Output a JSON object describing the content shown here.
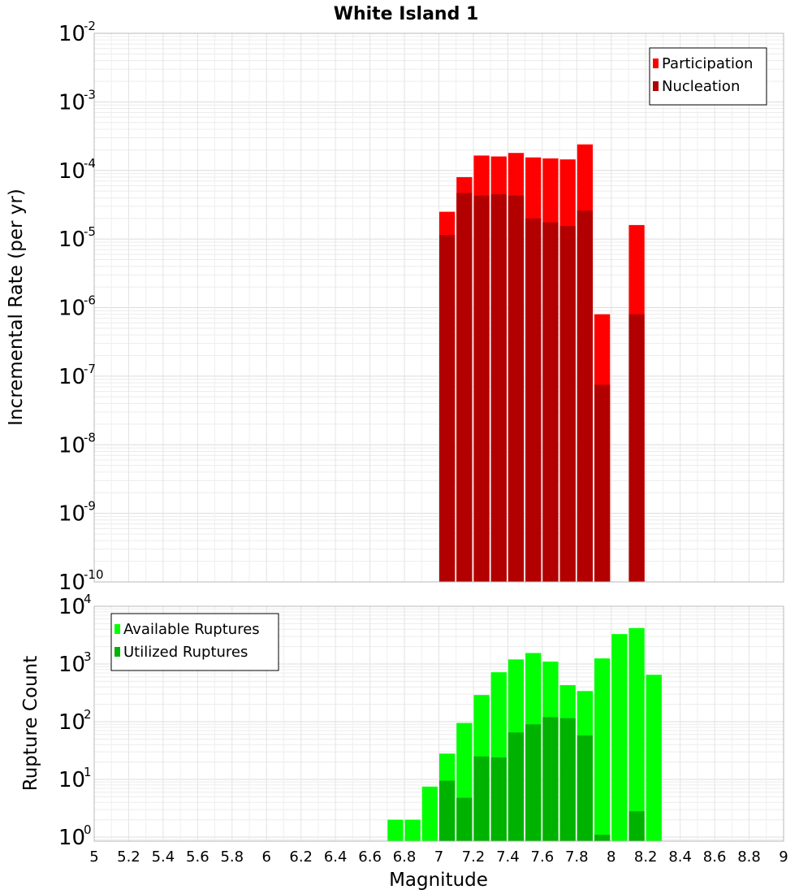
{
  "chart_data": [
    {
      "type": "bar",
      "title": "White Island 1",
      "xlabel": "",
      "ylabel": "Incremental Rate (per yr)",
      "y_scale": "log",
      "ylim": [
        1e-10,
        0.01
      ],
      "xlim": [
        5,
        9
      ],
      "bar_width": 0.1,
      "grid": true,
      "legend_position": "top-right",
      "y_ticks": [
        {
          "base": "10",
          "exp": "-10",
          "value": 1e-10
        },
        {
          "base": "10",
          "exp": "-9",
          "value": 1e-09
        },
        {
          "base": "10",
          "exp": "-8",
          "value": 1e-08
        },
        {
          "base": "10",
          "exp": "-7",
          "value": 1e-07
        },
        {
          "base": "10",
          "exp": "-6",
          "value": 1e-06
        },
        {
          "base": "10",
          "exp": "-5",
          "value": 1e-05
        },
        {
          "base": "10",
          "exp": "-4",
          "value": 0.0001
        },
        {
          "base": "10",
          "exp": "-3",
          "value": 0.001
        },
        {
          "base": "10",
          "exp": "-2",
          "value": 0.01
        }
      ],
      "series": [
        {
          "name": "Participation",
          "color": "#ff0000",
          "x": [
            7.05,
            7.15,
            7.25,
            7.35,
            7.45,
            7.55,
            7.65,
            7.75,
            7.85,
            7.95,
            8.15
          ],
          "values": [
            2.5e-05,
            8e-05,
            0.000165,
            0.00016,
            0.00018,
            0.000155,
            0.00015,
            0.000145,
            0.00024,
            8e-07,
            1.6e-05
          ]
        },
        {
          "name": "Nucleation",
          "color": "#b20000",
          "x": [
            7.05,
            7.15,
            7.25,
            7.35,
            7.45,
            7.55,
            7.65,
            7.75,
            7.85,
            7.95,
            8.15
          ],
          "values": [
            1.15e-05,
            4.7e-05,
            4.3e-05,
            4.5e-05,
            4.3e-05,
            2e-05,
            1.75e-05,
            1.55e-05,
            2.6e-05,
            7.5e-08,
            8e-07
          ]
        }
      ]
    },
    {
      "type": "bar",
      "title": "",
      "xlabel": "Magnitude",
      "ylabel": "Rupture Count",
      "y_scale": "log",
      "ylim": [
        0.85,
        10000
      ],
      "xlim": [
        5,
        9
      ],
      "bar_width": 0.1,
      "grid": true,
      "legend_position": "top-left",
      "x_ticks": [
        "5",
        "5.2",
        "5.4",
        "5.6",
        "5.8",
        "6",
        "6.2",
        "6.4",
        "6.6",
        "6.8",
        "7",
        "7.2",
        "7.4",
        "7.6",
        "7.8",
        "8",
        "8.2",
        "8.4",
        "8.6",
        "8.8",
        "9"
      ],
      "y_ticks": [
        {
          "base": "10",
          "exp": "0",
          "value": 1
        },
        {
          "base": "10",
          "exp": "1",
          "value": 10
        },
        {
          "base": "10",
          "exp": "2",
          "value": 100
        },
        {
          "base": "10",
          "exp": "3",
          "value": 1000
        },
        {
          "base": "10",
          "exp": "4",
          "value": 10000
        }
      ],
      "series": [
        {
          "name": "Available Ruptures",
          "color": "#00ff00",
          "x": [
            6.75,
            6.85,
            6.95,
            7.05,
            7.15,
            7.25,
            7.35,
            7.45,
            7.55,
            7.65,
            7.75,
            7.85,
            7.95,
            8.05,
            8.15,
            8.25
          ],
          "values": [
            2,
            2,
            7.5,
            28,
            95,
            290,
            720,
            1200,
            1550,
            1100,
            430,
            340,
            1250,
            3300,
            4200,
            650
          ]
        },
        {
          "name": "Utilized Ruptures",
          "color": "#00b200",
          "x": [
            7.05,
            7.15,
            7.25,
            7.35,
            7.45,
            7.55,
            7.65,
            7.75,
            7.85,
            7.95,
            8.15
          ],
          "values": [
            9.5,
            4.8,
            25,
            24,
            65,
            90,
            120,
            115,
            58,
            1.1,
            2.8
          ]
        }
      ]
    }
  ]
}
